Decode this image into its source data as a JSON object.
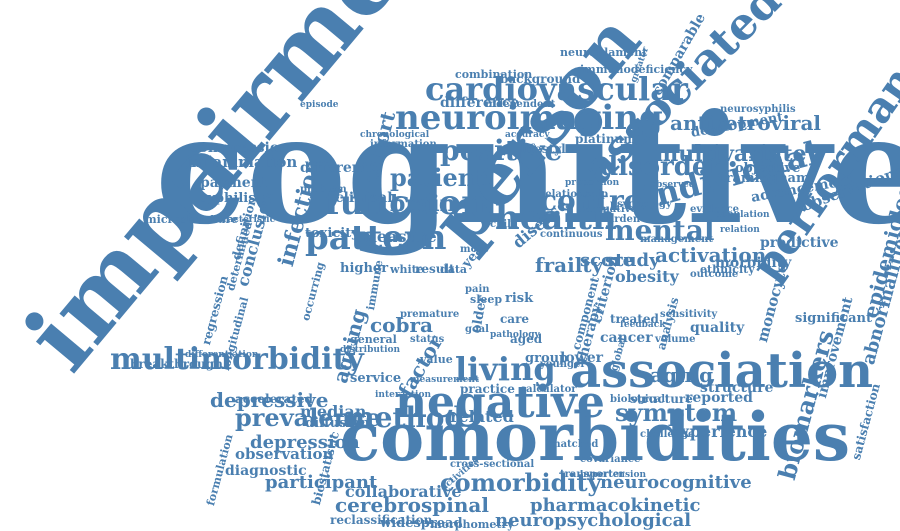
{
  "colors": {
    "text": "#4a7fb0",
    "background": "#ffffff"
  },
  "words": [
    "cognitive",
    "impairment",
    "comorbidities",
    "person",
    "association",
    "negative",
    "performance",
    "associated",
    "neuroimaging",
    "cardiovascular",
    "function",
    "pattern",
    "health",
    "multimorbidity",
    "individual",
    "positive",
    "control",
    "disorder",
    "mental",
    "living",
    "method",
    "prevalence",
    "comorbidity",
    "symptom",
    "multivariate",
    "antiretroviral",
    "cerebrospinal",
    "pharmacokinetic",
    "neurocognitive",
    "biomarkers",
    "epidemiology",
    "abnormalities",
    "activation",
    "depressive",
    "depression",
    "participant",
    "collaborative",
    "neuropsychological",
    "widespread",
    "reclassification",
    "morphometry",
    "patient",
    "brain",
    "cohort",
    "infection",
    "conclusion",
    "inflammation",
    "compression",
    "payment",
    "syphilis",
    "different",
    "clinical",
    "measure",
    "toxicity",
    "study",
    "score",
    "aging",
    "ageing",
    "factor",
    "median",
    "service",
    "diffusion",
    "related",
    "experience",
    "observation",
    "diagnostic",
    "biostatistic",
    "formulation",
    "accelerated",
    "breakthrough",
    "regression",
    "longitudinal",
    "definition",
    "determined",
    "microstructure",
    "characteristic",
    "frailty",
    "disease",
    "obesity",
    "predictive",
    "morbidity",
    "advancement",
    "observational",
    "framingham",
    "objective",
    "development",
    "improvement",
    "significant",
    "satisfaction",
    "quality",
    "monocyte",
    "analysis",
    "criterion",
    "therapy",
    "lower",
    "group",
    "reported",
    "structure",
    "immunodeficiency",
    "neurofilament",
    "combination",
    "background",
    "difference",
    "independent",
    "comparable",
    "lifestyle",
    "platinum",
    "neurosyphilis",
    "higher",
    "white",
    "result",
    "cancer",
    "treated",
    "ethnicity",
    "structure",
    "cobra",
    "general",
    "immune",
    "risk",
    "care",
    "aged",
    "older",
    "child",
    "year",
    "data",
    "more",
    "pain",
    "sleep",
    "goal",
    "value",
    "practice",
    "biological",
    "calculator",
    "transporter",
    "challenge",
    "hypertension",
    "differentiation",
    "distribution",
    "matched",
    "covariance",
    "pathology",
    "episode",
    "chronological",
    "information",
    "problem",
    "psychology",
    "evidence",
    "population",
    "management",
    "relation",
    "observed",
    "continuous",
    "burden",
    "normative",
    "premature",
    "status",
    "outcome",
    "feedback",
    "sensitivity",
    "volume",
    "occurring",
    "activities",
    "cross-sectional",
    "measurement",
    "younger",
    "interaction",
    "component",
    "global",
    "greater",
    "relationship",
    "proportion",
    "accuracy",
    "interpretive"
  ]
}
